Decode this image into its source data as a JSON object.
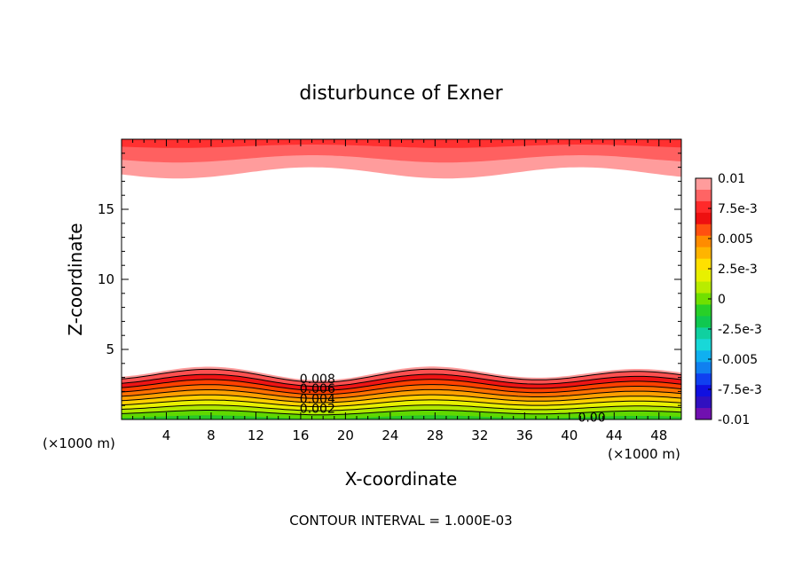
{
  "chart_data": {
    "type": "heatmap",
    "title": "disturbunce of Exner",
    "xlabel": "X-coordinate",
    "ylabel": "Z-coordinate",
    "x_unit_left": "(×1000 m)",
    "x_unit_right": "(×1000 m)",
    "xlim": [
      0,
      50
    ],
    "ylim": [
      0,
      20
    ],
    "x_tick_labels": [
      "4",
      "8",
      "12",
      "16",
      "20",
      "24",
      "28",
      "32",
      "36",
      "40",
      "44",
      "48"
    ],
    "x_ticks": [
      4,
      8,
      12,
      16,
      20,
      24,
      28,
      32,
      36,
      40,
      44,
      48
    ],
    "y_tick_labels": [
      "5",
      "10",
      "15"
    ],
    "y_ticks": [
      5,
      10,
      15
    ],
    "footer": "CONTOUR INTERVAL = 1.000E-03",
    "contour_interval": 0.001,
    "contour_labels": [
      {
        "text": "0.008",
        "x": 17.5,
        "y": 2.9
      },
      {
        "text": "0.006",
        "x": 17.5,
        "y": 2.2
      },
      {
        "text": "0.004",
        "x": 17.5,
        "y": 1.5
      },
      {
        "text": "0.002",
        "x": 17.5,
        "y": 0.8
      },
      {
        "text": "0.00",
        "x": 42,
        "y": 0.15
      }
    ],
    "colorbar": {
      "tick_labels": [
        "0.01",
        "7.5e-3",
        "0.005",
        "2.5e-3",
        "0",
        "-2.5e-3",
        "-0.005",
        "-7.5e-3",
        "-0.01"
      ],
      "ticks": [
        0.01,
        0.0075,
        0.005,
        0.0025,
        0,
        -0.0025,
        -0.005,
        -0.0075,
        -0.01
      ],
      "range": [
        -0.01,
        0.01
      ],
      "colors_top_to_bottom": [
        "#ff9c9c",
        "#ff6464",
        "#ff2a2a",
        "#ee1010",
        "#ff5010",
        "#ff8c00",
        "#ffb400",
        "#ffe000",
        "#e8f000",
        "#b8ec00",
        "#70e000",
        "#28d028",
        "#10c850",
        "#10d0a0",
        "#18d8d8",
        "#10b0f0",
        "#1080f0",
        "#1040f0",
        "#1010e0",
        "#3010c0",
        "#7010b0"
      ]
    },
    "bottom_layer_levels": [
      0,
      0.001,
      0.002,
      0.003,
      0.004,
      0.005,
      0.006,
      0.007,
      0.008,
      0.009,
      0.0095
    ],
    "bottom_layer_colors": [
      "#28c828",
      "#60d800",
      "#b0e800",
      "#e8f000",
      "#ffd000",
      "#ffa000",
      "#ff7000",
      "#ff4000",
      "#ee1414",
      "#ff5050",
      "#ff9c9c"
    ],
    "top_layer_colors": [
      "#ff9c9c",
      "#ff6060",
      "#ff3030"
    ]
  }
}
